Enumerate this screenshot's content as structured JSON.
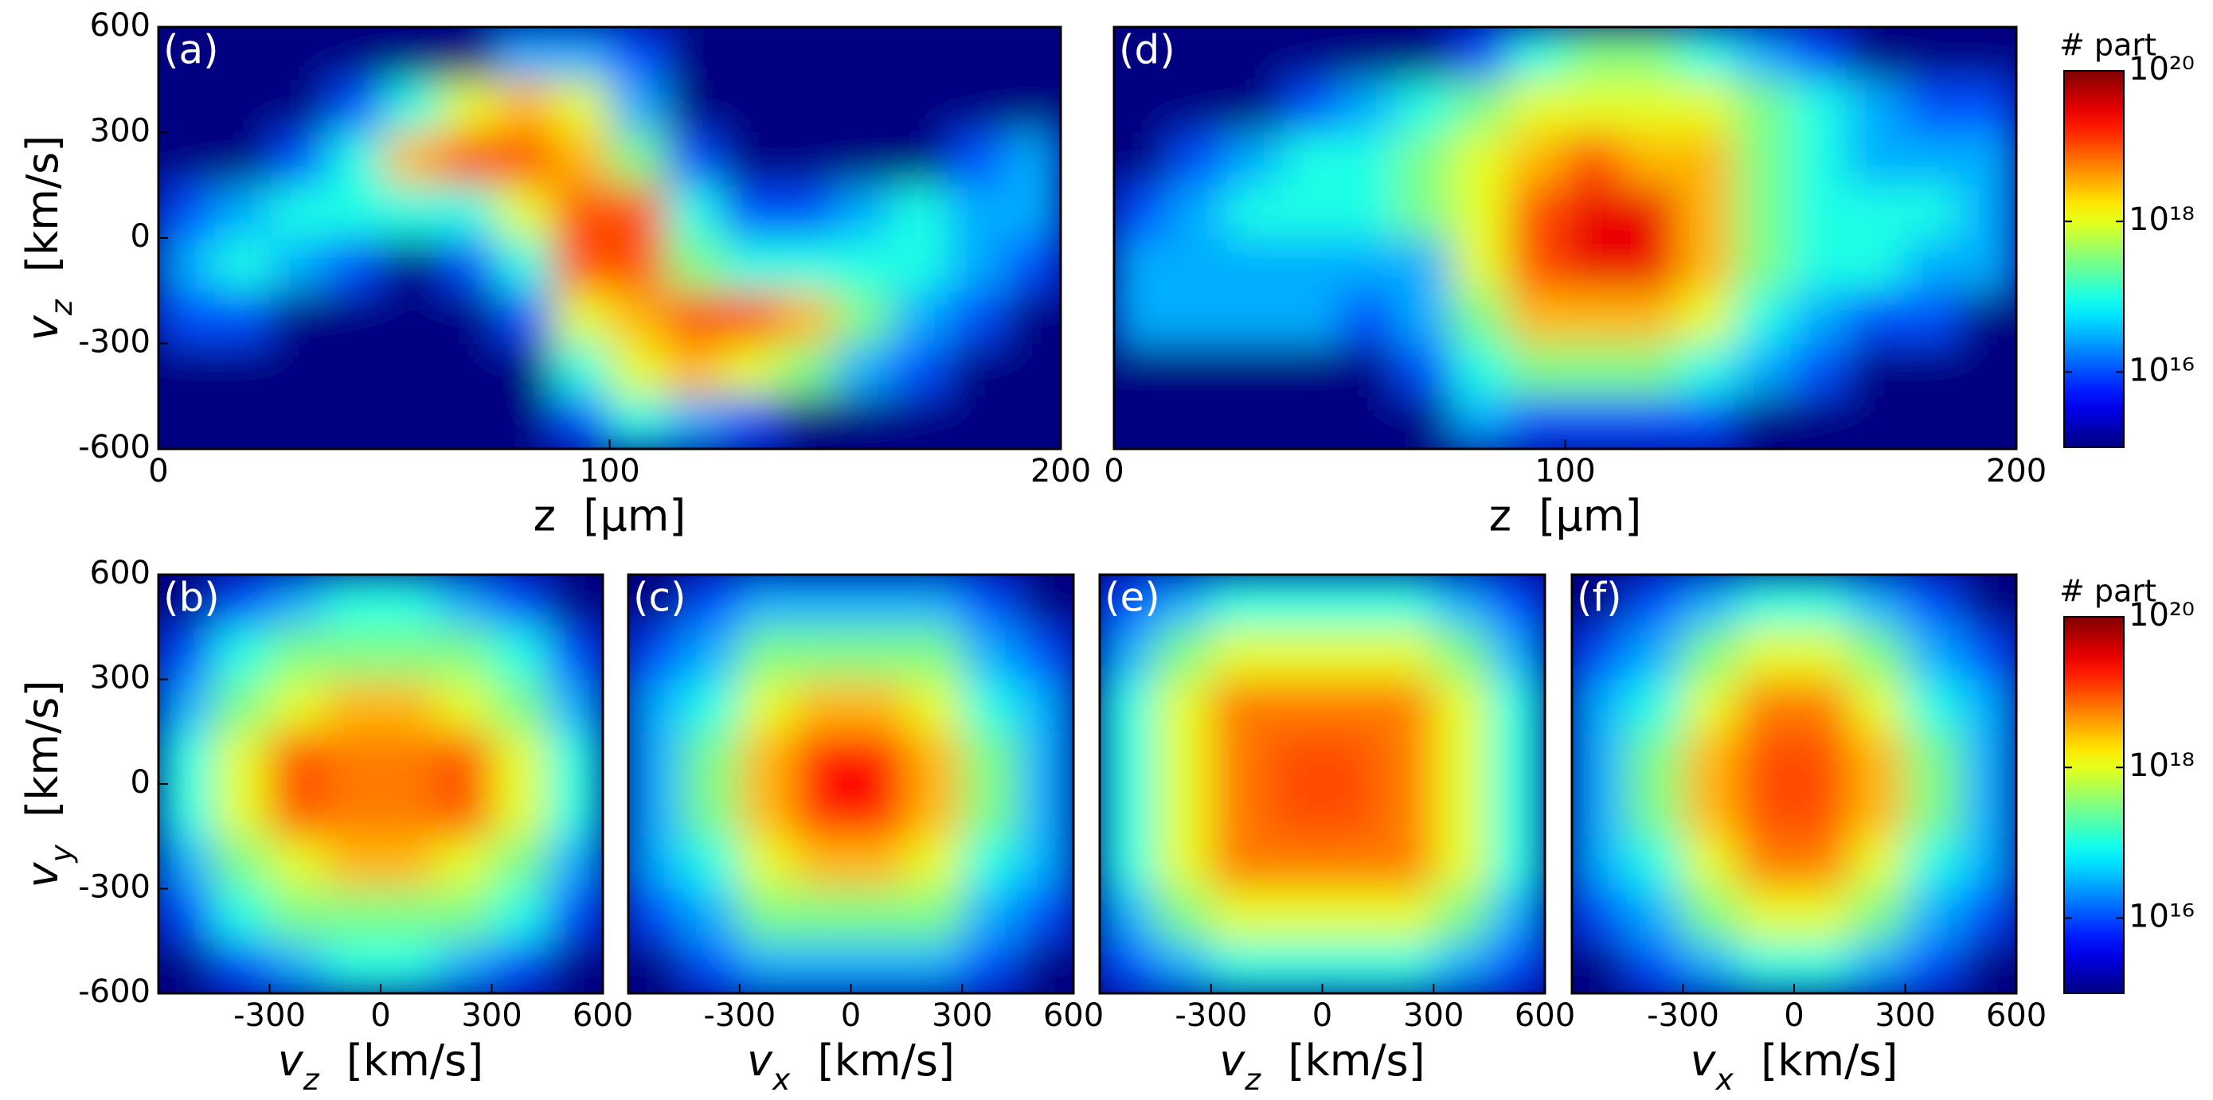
{
  "chart_data": [
    {
      "type": "heatmap",
      "label": "(a)",
      "x_label": "z  [μm]",
      "y_label": "vz  [km/s]",
      "xlim": [
        0,
        200
      ],
      "ylim": [
        -600,
        600
      ],
      "xticks": [
        0,
        100,
        200
      ],
      "yticks": [
        -600,
        -300,
        0,
        300,
        600
      ],
      "x_bins": [
        0,
        12.5,
        25,
        37.5,
        50,
        62.5,
        75,
        87.5,
        100,
        112.5,
        125,
        137.5,
        150,
        162.5,
        175,
        187.5,
        200
      ],
      "y_bins": [
        -600,
        -450,
        -300,
        -150,
        0,
        150,
        300,
        450,
        600
      ],
      "values": [
        [
          1000000000000000.0,
          1000000000000000.0,
          1000000000000000.0,
          1000000000000000.0,
          1000000000000000.0,
          1000000000000000.0,
          1000000000000000.0,
          1e+16,
          1e+17,
          3e+16,
          1e+16,
          1000000000000000.0,
          1000000000000000.0,
          1000000000000000.0,
          1000000000000000.0,
          1000000000000000.0
        ],
        [
          1000000000000000.0,
          1000000000000000.0,
          1000000000000000.0,
          1000000000000000.0,
          1000000000000000.0,
          1000000000000000.0,
          1000000000000000.0,
          1e+17,
          1e+18,
          3e+18,
          1e+18,
          3e+17,
          3e+16,
          1e+16,
          1000000000000000.0,
          1000000000000000.0
        ],
        [
          1e+16,
          1e+16,
          1000000000000000.0,
          1000000000000000.0,
          1000000000000000.0,
          1000000000000000.0,
          1e+16,
          1e+18,
          3e+18,
          1e+19,
          1e+19,
          3e+18,
          3e+17,
          3e+16,
          1e+16,
          1000000000000000.0
        ],
        [
          3e+16,
          1e+17,
          3e+16,
          1e+16,
          1000000000000000.0,
          1e+16,
          1e+17,
          1e+19,
          1e+19,
          3e+17,
          1e+17,
          1e+17,
          1e+17,
          1e+17,
          3e+16,
          1e+16
        ],
        [
          1e+16,
          3e+16,
          1e+17,
          1e+17,
          1e+17,
          1e+17,
          1e+18,
          1e+19,
          1e+19,
          1e+17,
          1e+16,
          1e+16,
          3e+16,
          1e+17,
          3e+16,
          3e+16
        ],
        [
          1000000000000000.0,
          1000000000000000.0,
          1e+16,
          1e+17,
          3e+18,
          1e+19,
          1e+19,
          3e+18,
          3e+17,
          1e+16,
          1000000000000000.0,
          1000000000000000.0,
          1000000000000000.0,
          1000000000000000.0,
          1e+16,
          3e+16
        ],
        [
          1000000000000000.0,
          1000000000000000.0,
          1000000000000000.0,
          1e+16,
          1e+17,
          1e+18,
          3e+18,
          1e+18,
          3e+16,
          1000000000000000.0,
          1000000000000000.0,
          1000000000000000.0,
          1000000000000000.0,
          1000000000000000.0,
          1000000000000000.0,
          1000000000000000.0
        ],
        [
          1000000000000000.0,
          1000000000000000.0,
          1000000000000000.0,
          1000000000000000.0,
          1000000000000000.0,
          1000000000000000.0,
          3e+16,
          3e+16,
          1e+16,
          1000000000000000.0,
          1000000000000000.0,
          1000000000000000.0,
          1000000000000000.0,
          1000000000000000.0,
          1000000000000000.0,
          1000000000000000.0
        ]
      ]
    },
    {
      "type": "heatmap",
      "label": "(d)",
      "x_label": "z  [μm]",
      "xlim": [
        0,
        200
      ],
      "ylim": [
        -600,
        600
      ],
      "xticks": [
        0,
        100,
        200
      ],
      "x_bins": [
        0,
        12.5,
        25,
        37.5,
        50,
        62.5,
        75,
        87.5,
        100,
        112.5,
        125,
        137.5,
        150,
        162.5,
        175,
        187.5,
        200
      ],
      "y_bins": [
        -600,
        -450,
        -300,
        -150,
        0,
        150,
        300,
        450,
        600
      ],
      "values": [
        [
          1000000000000000.0,
          1000000000000000.0,
          1000000000000000.0,
          1000000000000000.0,
          1000000000000000.0,
          1000000000000000.0,
          3e+16,
          1e+16,
          1e+16,
          1e+16,
          1e+16,
          1000000000000000.0,
          1000000000000000.0,
          1000000000000000.0,
          1000000000000000.0,
          1000000000000000.0
        ],
        [
          1000000000000000.0,
          1000000000000000.0,
          1000000000000000.0,
          1000000000000000.0,
          1000000000000000.0,
          1e+16,
          1e+17,
          3e+17,
          3e+17,
          3e+17,
          1e+17,
          3e+16,
          1e+16,
          1000000000000000.0,
          1000000000000000.0,
          1000000000000000.0
        ],
        [
          3e+16,
          3e+16,
          3e+16,
          3e+16,
          1e+16,
          3e+16,
          3e+17,
          3e+18,
          3e+18,
          3e+18,
          1e+18,
          1e+17,
          3e+16,
          1e+16,
          1e+16,
          1000000000000000.0
        ],
        [
          3e+16,
          3e+16,
          3e+16,
          3e+16,
          3e+16,
          3e+16,
          1e+18,
          1e+19,
          3e+19,
          3e+19,
          3e+18,
          3e+17,
          1e+17,
          1e+17,
          3e+16,
          3e+16
        ],
        [
          1e+16,
          3e+16,
          1e+17,
          1e+17,
          1e+17,
          3e+17,
          1e+18,
          1e+19,
          3e+19,
          3e+19,
          3e+18,
          3e+17,
          1e+17,
          1e+17,
          1e+17,
          3e+16
        ],
        [
          1000000000000000.0,
          1e+16,
          3e+16,
          1e+17,
          1e+17,
          3e+17,
          1e+18,
          3e+18,
          1e+19,
          3e+18,
          3e+18,
          3e+17,
          1e+17,
          3e+16,
          3e+16,
          3e+16
        ],
        [
          1000000000000000.0,
          1000000000000000.0,
          1000000000000000.0,
          1e+16,
          3e+16,
          1e+17,
          3e+17,
          1e+18,
          1e+18,
          1e+18,
          1e+18,
          3e+17,
          1e+17,
          3e+16,
          1e+16,
          1e+16
        ],
        [
          1000000000000000.0,
          1000000000000000.0,
          1000000000000000.0,
          1000000000000000.0,
          1000000000000000.0,
          1000000000000000.0,
          1e+16,
          1e+17,
          3e+17,
          3e+17,
          1e+17,
          3e+16,
          1e+16,
          1000000000000000.0,
          1000000000000000.0,
          1000000000000000.0
        ]
      ]
    },
    {
      "type": "colorbar",
      "title": "# part",
      "clim": [
        1000000000000000.0,
        1e+20
      ],
      "log_scale": true,
      "colormap": "jet",
      "cticks": [
        {
          "value": 1e+16,
          "label": "10¹⁶"
        },
        {
          "value": 1e+18,
          "label": "10¹⁸"
        },
        {
          "value": 1e+20,
          "label": "10²⁰"
        }
      ]
    },
    {
      "type": "heatmap",
      "label": "(b)",
      "x_label": "vz  [km/s]",
      "y_label": "vy  [km/s]",
      "xlim": [
        -600,
        600
      ],
      "ylim": [
        -600,
        600
      ],
      "xticks": [
        -300,
        0,
        300,
        600
      ],
      "yticks": [
        -600,
        -300,
        0,
        300,
        600
      ],
      "x_bins": [
        -600,
        -450,
        -300,
        -150,
        0,
        150,
        300,
        450,
        600
      ],
      "y_bins": [
        -600,
        -450,
        -300,
        -150,
        0,
        150,
        300,
        450,
        600
      ],
      "values": [
        [
          1000000000000000.0,
          1e+16,
          3e+16,
          1e+17,
          1e+17,
          3e+16,
          1e+16,
          1000000000000000.0
        ],
        [
          1e+16,
          1e+17,
          3e+17,
          3e+17,
          3e+17,
          3e+17,
          1e+17,
          1e+16
        ],
        [
          3e+16,
          3e+17,
          1e+18,
          3e+18,
          3e+18,
          1e+18,
          3e+17,
          3e+16
        ],
        [
          1e+17,
          1e+18,
          1e+19,
          6e+18,
          6e+18,
          1e+19,
          1e+18,
          1e+17
        ],
        [
          1e+17,
          1e+18,
          1e+19,
          6e+18,
          6e+18,
          1e+19,
          1e+18,
          1e+17
        ],
        [
          3e+16,
          3e+17,
          1e+18,
          3e+18,
          3e+18,
          1e+18,
          3e+17,
          3e+16
        ],
        [
          1e+16,
          1e+17,
          3e+17,
          3e+17,
          3e+17,
          3e+17,
          1e+17,
          1e+16
        ],
        [
          1000000000000000.0,
          1e+16,
          3e+16,
          1e+17,
          1e+17,
          3e+16,
          1e+16,
          1000000000000000.0
        ]
      ]
    },
    {
      "type": "heatmap",
      "label": "(c)",
      "x_label": "vx  [km/s]",
      "xlim": [
        -600,
        600
      ],
      "ylim": [
        -600,
        600
      ],
      "xticks": [
        -300,
        0,
        300,
        600
      ],
      "x_bins": [
        -600,
        -450,
        -300,
        -150,
        0,
        150,
        300,
        450,
        600
      ],
      "y_bins": [
        -600,
        -450,
        -300,
        -150,
        0,
        150,
        300,
        450,
        600
      ],
      "values": [
        [
          1000000000000000.0,
          1e+16,
          3e+16,
          3e+16,
          3e+16,
          3e+16,
          1e+16,
          1000000000000000.0
        ],
        [
          1e+16,
          3e+16,
          3e+17,
          3e+17,
          3e+17,
          3e+17,
          3e+16,
          1e+16
        ],
        [
          3e+16,
          1e+17,
          1e+18,
          3e+18,
          3e+18,
          1e+18,
          1e+17,
          3e+16
        ],
        [
          3e+16,
          3e+17,
          3e+18,
          2e+19,
          2e+19,
          3e+18,
          3e+17,
          3e+16
        ],
        [
          3e+16,
          3e+17,
          3e+18,
          2e+19,
          2e+19,
          3e+18,
          3e+17,
          3e+16
        ],
        [
          3e+16,
          1e+17,
          1e+18,
          3e+18,
          3e+18,
          1e+18,
          1e+17,
          3e+16
        ],
        [
          1e+16,
          3e+16,
          3e+17,
          3e+17,
          3e+17,
          3e+17,
          3e+16,
          1e+16
        ],
        [
          1000000000000000.0,
          1e+16,
          3e+16,
          3e+16,
          3e+16,
          3e+16,
          1e+16,
          1000000000000000.0
        ]
      ]
    },
    {
      "type": "heatmap",
      "label": "(e)",
      "x_label": "vz  [km/s]",
      "xlim": [
        -600,
        600
      ],
      "ylim": [
        -600,
        600
      ],
      "xticks": [
        -300,
        0,
        300,
        600
      ],
      "x_bins": [
        -600,
        -450,
        -300,
        -150,
        0,
        150,
        300,
        450,
        600
      ],
      "y_bins": [
        -600,
        -450,
        -300,
        -150,
        0,
        150,
        300,
        450,
        600
      ],
      "values": [
        [
          1e+16,
          3e+16,
          1e+17,
          1e+17,
          1e+17,
          1e+17,
          3e+16,
          1e+16
        ],
        [
          3e+16,
          3e+17,
          1e+18,
          1e+18,
          1e+18,
          1e+18,
          3e+17,
          3e+16
        ],
        [
          1e+17,
          1e+18,
          6e+18,
          6e+18,
          6e+18,
          6e+18,
          1e+18,
          1e+17
        ],
        [
          1e+17,
          1e+18,
          6e+18,
          1e+19,
          1e+19,
          6e+18,
          1e+18,
          1e+17
        ],
        [
          1e+17,
          1e+18,
          6e+18,
          1e+19,
          1e+19,
          6e+18,
          1e+18,
          1e+17
        ],
        [
          1e+17,
          1e+18,
          6e+18,
          6e+18,
          6e+18,
          6e+18,
          1e+18,
          1e+17
        ],
        [
          3e+16,
          3e+17,
          1e+18,
          1e+18,
          1e+18,
          1e+18,
          3e+17,
          3e+16
        ],
        [
          1e+16,
          3e+16,
          1e+17,
          1e+17,
          1e+17,
          1e+17,
          3e+16,
          1e+16
        ]
      ]
    },
    {
      "type": "heatmap",
      "label": "(f)",
      "x_label": "vx  [km/s]",
      "xlim": [
        -600,
        600
      ],
      "ylim": [
        -600,
        600
      ],
      "xticks": [
        -300,
        0,
        300,
        600
      ],
      "x_bins": [
        -600,
        -450,
        -300,
        -150,
        0,
        150,
        300,
        450,
        600
      ],
      "y_bins": [
        -600,
        -450,
        -300,
        -150,
        0,
        150,
        300,
        450,
        600
      ],
      "values": [
        [
          1000000000000000.0,
          1e+16,
          3e+16,
          1e+17,
          1e+17,
          3e+16,
          1e+16,
          1000000000000000.0
        ],
        [
          1e+16,
          3e+16,
          3e+17,
          1e+18,
          1e+18,
          3e+17,
          3e+16,
          1e+16
        ],
        [
          3e+16,
          1e+17,
          1e+18,
          6e+18,
          6e+18,
          1e+18,
          1e+17,
          3e+16
        ],
        [
          3e+16,
          3e+17,
          3e+18,
          1e+19,
          1e+19,
          3e+18,
          3e+17,
          3e+16
        ],
        [
          3e+16,
          3e+17,
          3e+18,
          1e+19,
          1e+19,
          3e+18,
          3e+17,
          3e+16
        ],
        [
          3e+16,
          1e+17,
          1e+18,
          6e+18,
          6e+18,
          1e+18,
          1e+17,
          3e+16
        ],
        [
          1e+16,
          3e+16,
          3e+17,
          1e+18,
          1e+18,
          3e+17,
          3e+16,
          1e+16
        ],
        [
          1000000000000000.0,
          1e+16,
          3e+16,
          1e+17,
          1e+17,
          3e+16,
          1e+16,
          1000000000000000.0
        ]
      ]
    },
    {
      "type": "colorbar",
      "title": "# part",
      "clim": [
        1000000000000000.0,
        1e+20
      ],
      "log_scale": true,
      "colormap": "jet",
      "cticks": [
        {
          "value": 1e+16,
          "label": "10¹⁶"
        },
        {
          "value": 1e+18,
          "label": "10¹⁸"
        },
        {
          "value": 1e+20,
          "label": "10²⁰"
        }
      ]
    }
  ]
}
